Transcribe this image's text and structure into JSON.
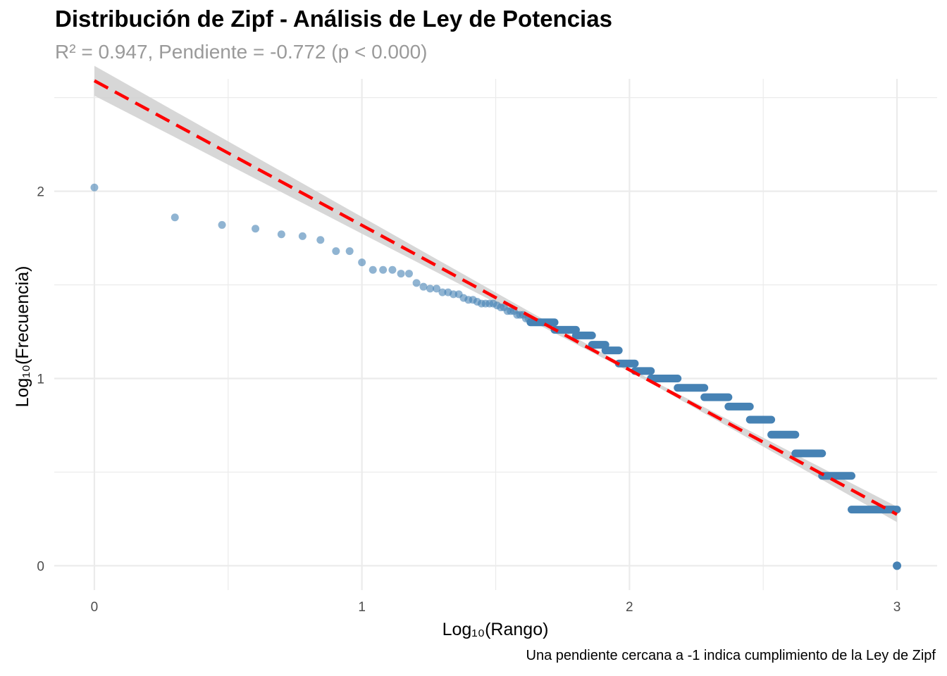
{
  "chart_data": {
    "type": "scatter",
    "title": "Distribución de Zipf - Análisis de Ley de Potencias",
    "subtitle": "R² = 0.947, Pendiente = -0.772 (p < 0.000)",
    "caption": "Una pendiente cercana a -1 indica cumplimiento de la Ley de Zipf",
    "xlabel": "Log₁₀(Rango)",
    "ylabel": "Log₁₀(Frecuencia)",
    "xlim": [
      -0.15,
      3.15
    ],
    "ylim": [
      -0.13,
      2.6
    ],
    "xticks": [
      "0",
      "1",
      "2",
      "3"
    ],
    "yticks": [
      "0",
      "1",
      "2"
    ],
    "grid": true,
    "colors": {
      "points": "#4682b4",
      "fit_line": "#ff0000",
      "confidence_band": "#d3d3d3"
    },
    "fit": {
      "slope": -0.772,
      "intercept": 2.59,
      "x_range": [
        0,
        3
      ],
      "style": "dashed"
    },
    "points": {
      "x": [
        0,
        0.301,
        0.477,
        0.602,
        0.699,
        0.778,
        0.845,
        0.903,
        0.954,
        1.0,
        1.041,
        1.079,
        1.114,
        1.146,
        1.176,
        1.204,
        1.23,
        1.255,
        1.279,
        1.301,
        1.322,
        1.342,
        1.362,
        1.38,
        1.398,
        1.415,
        1.431,
        1.447,
        1.462,
        1.477,
        1.491,
        1.505,
        1.519,
        1.531,
        1.544,
        1.556,
        1.568,
        1.58,
        1.591,
        1.602,
        1.613,
        1.623
      ],
      "y": [
        2.02,
        1.86,
        1.82,
        1.8,
        1.77,
        1.76,
        1.74,
        1.68,
        1.68,
        1.62,
        1.58,
        1.58,
        1.58,
        1.56,
        1.56,
        1.51,
        1.49,
        1.48,
        1.48,
        1.46,
        1.46,
        1.45,
        1.45,
        1.43,
        1.42,
        1.42,
        1.41,
        1.4,
        1.4,
        1.4,
        1.4,
        1.39,
        1.38,
        1.38,
        1.36,
        1.36,
        1.36,
        1.34,
        1.34,
        1.34,
        1.32,
        1.32
      ],
      "frequency_plateaus": [
        {
          "y": 1.3,
          "x_start": 1.63,
          "x_end": 1.72
        },
        {
          "y": 1.26,
          "x_start": 1.72,
          "x_end": 1.8
        },
        {
          "y": 1.23,
          "x_start": 1.8,
          "x_end": 1.86
        },
        {
          "y": 1.18,
          "x_start": 1.86,
          "x_end": 1.91
        },
        {
          "y": 1.15,
          "x_start": 1.91,
          "x_end": 1.96
        },
        {
          "y": 1.08,
          "x_start": 1.96,
          "x_end": 2.02
        },
        {
          "y": 1.04,
          "x_start": 2.02,
          "x_end": 2.08
        },
        {
          "y": 1.0,
          "x_start": 2.08,
          "x_end": 2.18
        },
        {
          "y": 0.95,
          "x_start": 2.18,
          "x_end": 2.28
        },
        {
          "y": 0.9,
          "x_start": 2.28,
          "x_end": 2.37
        },
        {
          "y": 0.85,
          "x_start": 2.37,
          "x_end": 2.45
        },
        {
          "y": 0.78,
          "x_start": 2.45,
          "x_end": 2.53
        },
        {
          "y": 0.7,
          "x_start": 2.53,
          "x_end": 2.62
        },
        {
          "y": 0.6,
          "x_start": 2.62,
          "x_end": 2.72
        },
        {
          "y": 0.48,
          "x_start": 2.72,
          "x_end": 2.83
        },
        {
          "y": 0.3,
          "x_start": 2.83,
          "x_end": 3.0
        },
        {
          "y": 0.0,
          "x_start": 3.0,
          "x_end": 3.0
        }
      ]
    }
  }
}
